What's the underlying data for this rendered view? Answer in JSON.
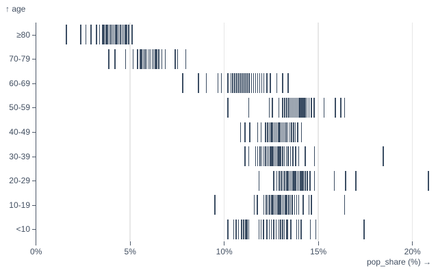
{
  "y_title": "↑ age",
  "x_title": "pop_share (%) →",
  "colors": {
    "tick": "#3b4d63",
    "axis_text": "#414e60",
    "axis_line": "#4d5868",
    "grid": "#e7e7e7",
    "background": "#ffffff"
  },
  "chart_data": {
    "type": "tick",
    "title": "",
    "ylabel": "age",
    "xlabel": "pop_share (%)",
    "xlim": [
      0,
      21
    ],
    "x_ticks": [
      0,
      5,
      10,
      15,
      20
    ],
    "x_tick_labels": [
      "0%",
      "5%",
      "10%",
      "15%",
      "20%"
    ],
    "grid": true,
    "legend": false,
    "categories": [
      "≥80",
      "70-79",
      "60-69",
      "50-59",
      "40-49",
      "30-39",
      "20-29",
      "10-19",
      "<10"
    ],
    "series": [
      {
        "name": "≥80",
        "values": [
          1.62,
          2.37,
          2.65,
          2.92,
          3.22,
          3.37,
          3.53,
          3.62,
          3.71,
          3.8,
          3.89,
          3.97,
          4.06,
          4.14,
          4.23,
          4.31,
          4.4,
          4.48,
          4.57,
          4.65,
          4.74,
          4.82,
          4.92,
          5.1
        ]
      },
      {
        "name": "70-79",
        "values": [
          3.87,
          4.2,
          4.75,
          5.01,
          5.16,
          5.4,
          5.53,
          5.62,
          5.7,
          5.8,
          5.89,
          5.99,
          6.07,
          6.17,
          6.24,
          6.34,
          6.42,
          6.52,
          6.68,
          6.87,
          7.4,
          7.52,
          7.96
        ]
      },
      {
        "name": "60-69",
        "values": [
          7.8,
          8.63,
          9.05,
          9.66,
          9.84,
          10.2,
          10.35,
          10.45,
          10.56,
          10.67,
          10.78,
          10.89,
          11.0,
          11.11,
          11.22,
          11.33,
          11.44,
          11.55,
          11.66,
          11.77,
          11.88,
          11.99,
          12.1,
          12.27,
          12.45,
          12.8,
          13.1,
          13.4
        ]
      },
      {
        "name": "50-59",
        "values": [
          10.2,
          11.3,
          12.4,
          12.55,
          12.9,
          13.1,
          13.22,
          13.32,
          13.42,
          13.52,
          13.6,
          13.67,
          13.74,
          13.81,
          13.88,
          13.95,
          14.02,
          14.09,
          14.16,
          14.23,
          14.3,
          14.4,
          14.5,
          14.62,
          14.78,
          15.3,
          15.9,
          16.2,
          16.4
        ]
      },
      {
        "name": "40-49",
        "values": [
          10.87,
          11.1,
          11.36,
          11.78,
          11.96,
          12.2,
          12.3,
          12.4,
          12.48,
          12.56,
          12.64,
          12.72,
          12.8,
          12.88,
          12.96,
          13.04,
          13.12,
          13.2,
          13.28,
          13.38,
          13.48,
          13.58,
          13.68,
          13.78,
          13.9,
          14.1
        ]
      },
      {
        "name": "30-39",
        "values": [
          11.1,
          11.3,
          11.66,
          11.78,
          11.9,
          12.0,
          12.1,
          12.2,
          12.28,
          12.36,
          12.44,
          12.52,
          12.6,
          12.68,
          12.76,
          12.84,
          12.92,
          13.0,
          13.1,
          13.2,
          13.3,
          13.4,
          13.52,
          13.65,
          13.8,
          13.95,
          14.3,
          14.8,
          18.45
        ]
      },
      {
        "name": "20-29",
        "values": [
          11.84,
          12.63,
          12.8,
          12.92,
          13.02,
          13.12,
          13.22,
          13.32,
          13.4,
          13.48,
          13.56,
          13.64,
          13.72,
          13.8,
          13.88,
          13.96,
          14.04,
          14.12,
          14.2,
          14.3,
          14.42,
          14.55,
          14.8,
          15.0,
          15.84,
          16.45,
          17.0,
          20.85
        ]
      },
      {
        "name": "10-19",
        "values": [
          9.5,
          11.6,
          11.76,
          12.1,
          12.22,
          12.32,
          12.42,
          12.52,
          12.6,
          12.68,
          12.76,
          12.84,
          12.92,
          13.0,
          13.08,
          13.16,
          13.24,
          13.32,
          13.42,
          13.52,
          13.62,
          13.74,
          13.85,
          13.96,
          14.2,
          14.5,
          14.62,
          16.4
        ]
      },
      {
        "name": "<10",
        "values": [
          10.2,
          10.5,
          10.63,
          10.75,
          10.93,
          11.03,
          11.13,
          11.22,
          11.3,
          11.84,
          11.96,
          12.08,
          12.27,
          12.39,
          12.5,
          12.63,
          12.75,
          12.9,
          13.0,
          13.1,
          13.2,
          13.3,
          13.36,
          13.54,
          13.84,
          13.95,
          14.08,
          14.57,
          14.87,
          17.42
        ]
      }
    ]
  }
}
